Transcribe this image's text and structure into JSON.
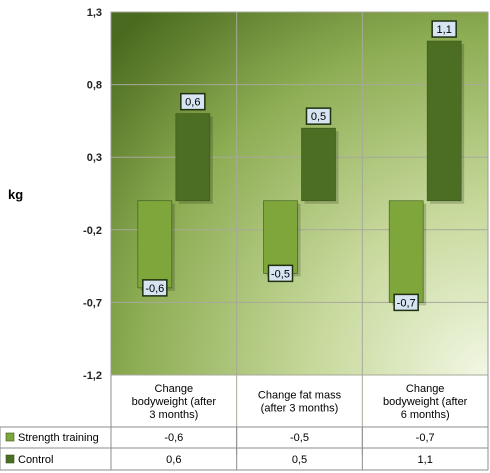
{
  "chart_data": {
    "type": "bar",
    "ylabel": "kg",
    "ylim": [
      -1.2,
      1.3
    ],
    "yticks": [
      "1,3",
      "0,8",
      "0,3",
      "-0,2",
      "-0,7",
      "-1,2"
    ],
    "ytick_values": [
      1.3,
      0.8,
      0.3,
      -0.2,
      -0.7,
      -1.2
    ],
    "categories": [
      [
        "Change",
        "bodyweight (after",
        "3 months)"
      ],
      [
        "Change fat mass",
        "(after 3 months)"
      ],
      [
        "Change",
        "bodyweight (after",
        "6 months)"
      ]
    ],
    "series": [
      {
        "name": "Strength training",
        "values": [
          -0.6,
          -0.5,
          -0.7
        ],
        "labels": [
          "-0,6",
          "-0,5",
          "-0,7"
        ],
        "color": "#7ea63a"
      },
      {
        "name": "Control",
        "values": [
          0.6,
          0.5,
          1.1
        ],
        "labels": [
          "0,6",
          "0,5",
          "1,1"
        ],
        "color": "#4b6e23"
      }
    ],
    "grid": true,
    "legend": "data-table",
    "colors": {
      "plot_gradient_dark": "#4e6e22",
      "plot_gradient_light": "#eef4de",
      "label_box": "#d7e4f2"
    }
  }
}
